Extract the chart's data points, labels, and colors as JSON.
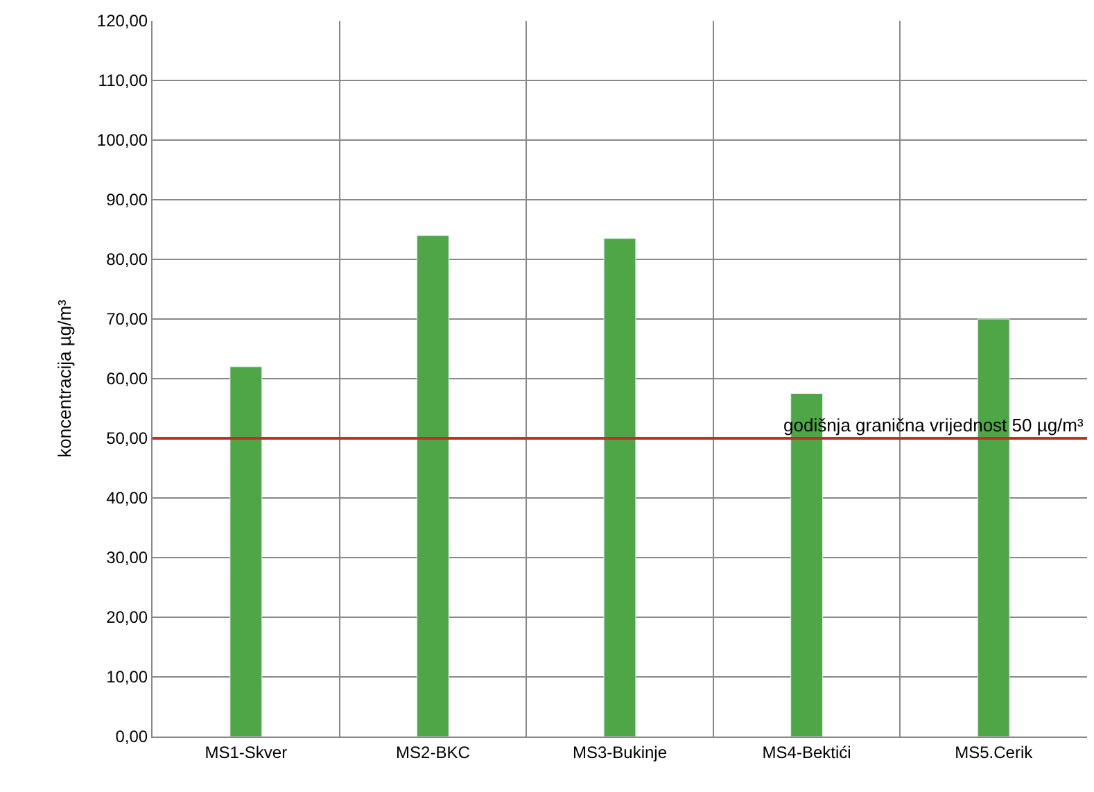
{
  "chart_data": {
    "type": "bar",
    "ylabel": "koncentracija µg/m³",
    "categories": [
      "MS1-Skver",
      "MS2-BKC",
      "MS3-Bukinje",
      "MS4-Bektići",
      "MS5.Cerik"
    ],
    "values": [
      62,
      84,
      83.5,
      57.5,
      70
    ],
    "color": "#4ea646",
    "ylim": [
      0,
      120
    ],
    "yticks": [
      {
        "value": 0,
        "label": "0,00"
      },
      {
        "value": 10,
        "label": "10,00"
      },
      {
        "value": 20,
        "label": "20,00"
      },
      {
        "value": 30,
        "label": "30,00"
      },
      {
        "value": 40,
        "label": "40,00"
      },
      {
        "value": 50,
        "label": "50,00"
      },
      {
        "value": 60,
        "label": "60,00"
      },
      {
        "value": 70,
        "label": "70,00"
      },
      {
        "value": 80,
        "label": "80,00"
      },
      {
        "value": 90,
        "label": "90,00"
      },
      {
        "value": 100,
        "label": "100,00"
      },
      {
        "value": 110,
        "label": "110,00"
      },
      {
        "value": 120,
        "label": "120,00"
      }
    ],
    "ref_lines": [
      {
        "axis": "y",
        "value": 50,
        "label": "godišnja granična vrijednost 50 µg/m³",
        "color": "#c0302b"
      }
    ],
    "grid": true
  }
}
